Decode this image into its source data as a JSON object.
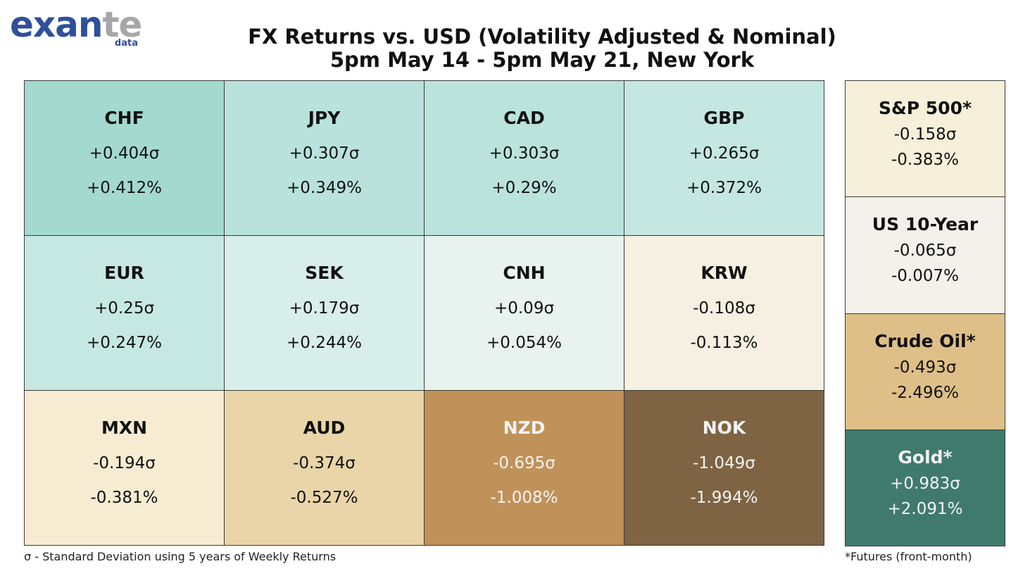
{
  "logo": {
    "main_a": "exan",
    "main_b": "te",
    "sub": "data"
  },
  "title": {
    "line1": "FX Returns vs. USD (Volatility Adjusted & Nominal)",
    "line2": "5pm May 14 - 5pm May 21, New York"
  },
  "chart_data": {
    "type": "table",
    "fx": [
      {
        "name": "CHF",
        "vol": "+0.404σ",
        "nom": "+0.412%",
        "bg": "#a3d9cf",
        "fg": "#111111"
      },
      {
        "name": "JPY",
        "vol": "+0.307σ",
        "nom": "+0.349%",
        "bg": "#b9e2dc",
        "fg": "#111111"
      },
      {
        "name": "CAD",
        "vol": "+0.303σ",
        "nom": "+0.29%",
        "bg": "#bae3dc",
        "fg": "#111111"
      },
      {
        "name": "GBP",
        "vol": "+0.265σ",
        "nom": "+0.372%",
        "bg": "#c4e7e1",
        "fg": "#111111"
      },
      {
        "name": "EUR",
        "vol": "+0.25σ",
        "nom": "+0.247%",
        "bg": "#c6e8e3",
        "fg": "#111111"
      },
      {
        "name": "SEK",
        "vol": "+0.179σ",
        "nom": "+0.244%",
        "bg": "#d8eeea",
        "fg": "#111111"
      },
      {
        "name": "CNH",
        "vol": "+0.09σ",
        "nom": "+0.054%",
        "bg": "#e8f2ef",
        "fg": "#111111"
      },
      {
        "name": "KRW",
        "vol": "-0.108σ",
        "nom": "-0.113%",
        "bg": "#f6f0e2",
        "fg": "#111111"
      },
      {
        "name": "MXN",
        "vol": "-0.194σ",
        "nom": "-0.381%",
        "bg": "#f7ecd2",
        "fg": "#111111"
      },
      {
        "name": "AUD",
        "vol": "-0.374σ",
        "nom": "-0.527%",
        "bg": "#e9d5a8",
        "fg": "#111111"
      },
      {
        "name": "NZD",
        "vol": "-0.695σ",
        "nom": "-1.008%",
        "bg": "#c0925a",
        "fg": "#f3f3f3"
      },
      {
        "name": "NOK",
        "vol": "-1.049σ",
        "nom": "-1.994%",
        "bg": "#7e6443",
        "fg": "#f3f3f3"
      }
    ],
    "other": [
      {
        "name": "S&P 500*",
        "vol": "-0.158σ",
        "nom": "-0.383%",
        "bg": "#f6efd9",
        "fg": "#111111"
      },
      {
        "name": "US 10-Year",
        "vol": "-0.065σ",
        "nom": "-0.007%",
        "bg": "#f4f1ea",
        "fg": "#111111"
      },
      {
        "name": "Crude Oil*",
        "vol": "-0.493σ",
        "nom": "-2.496%",
        "bg": "#dfbf88",
        "fg": "#111111"
      },
      {
        "name": "Gold*",
        "vol": "+0.983σ",
        "nom": "+2.091%",
        "bg": "#3f7a6d",
        "fg": "#f3f3f3"
      }
    ]
  },
  "footnotes": {
    "left": "σ - Standard Deviation using 5 years of Weekly Returns",
    "right": "*Futures (front-month)"
  }
}
